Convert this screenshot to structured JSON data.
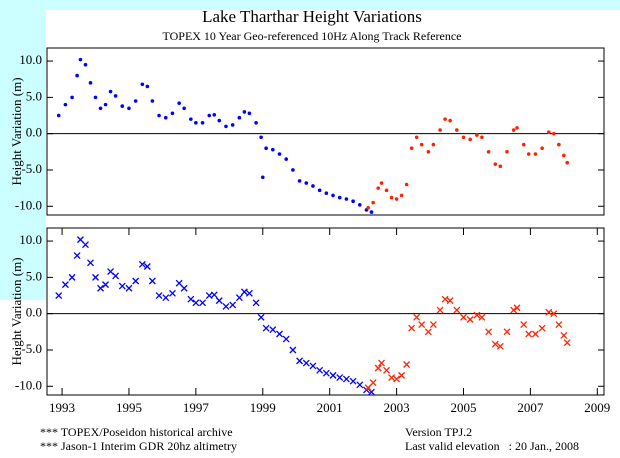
{
  "chart_data": [
    {
      "type": "scatter",
      "marker": "dot",
      "title": "Lake Tharthar Height Variations",
      "subtitle": "TOPEX 10 Year Geo-referenced 10Hz Along Track Reference",
      "y_label": "Height Variation (m)",
      "xlim": [
        1992.55,
        2009.2
      ],
      "ylim": [
        -11.2,
        11.8
      ],
      "yticks": [
        {
          "value": -10,
          "label": "-10.0"
        },
        {
          "value": -5,
          "label": "-5.0"
        },
        {
          "value": 0,
          "label": "0.0"
        },
        {
          "value": 5,
          "label": "5.0"
        },
        {
          "value": 10,
          "label": "10.0"
        }
      ],
      "zero_line": true,
      "series": [
        {
          "color": "#0000ff",
          "x": [
            1992.9,
            1993.1,
            1993.3,
            1993.45,
            1993.55,
            1993.7,
            1993.85,
            1994.0,
            1994.15,
            1994.3,
            1994.45,
            1994.6,
            1994.8,
            1995.0,
            1995.2,
            1995.4,
            1995.55,
            1995.7,
            1995.9,
            1996.1,
            1996.3,
            1996.5,
            1996.65,
            1996.85,
            1997.0,
            1997.2,
            1997.4,
            1997.55,
            1997.7,
            1997.9,
            1998.1,
            1998.3,
            1998.45,
            1998.6,
            1998.8,
            1998.95,
            1999.0,
            1999.1,
            1999.3,
            1999.5,
            1999.7,
            1999.9,
            2000.1,
            2000.3,
            2000.5,
            2000.7,
            2000.9,
            2001.1,
            2001.3,
            2001.5,
            2001.7,
            2001.9,
            2002.1,
            2002.25
          ],
          "values": [
            2.5,
            4.0,
            5.0,
            8.0,
            10.2,
            9.5,
            7.0,
            5.0,
            3.5,
            4.0,
            5.8,
            5.2,
            3.8,
            3.5,
            4.5,
            6.8,
            6.5,
            4.5,
            2.5,
            2.2,
            2.8,
            4.2,
            3.5,
            2.0,
            1.5,
            1.5,
            2.5,
            2.6,
            1.8,
            1.0,
            1.2,
            2.2,
            3.0,
            2.8,
            1.5,
            -0.5,
            -6.0,
            -2.0,
            -2.2,
            -2.8,
            -3.5,
            -5.0,
            -6.5,
            -6.8,
            -7.2,
            -7.8,
            -8.2,
            -8.5,
            -8.8,
            -9.0,
            -9.3,
            -9.8,
            -10.5,
            -10.8
          ]
        },
        {
          "color": "#ff2200",
          "x": [
            2002.15,
            2002.3,
            2002.45,
            2002.55,
            2002.7,
            2002.85,
            2003.0,
            2003.15,
            2003.3,
            2003.45,
            2003.6,
            2003.75,
            2003.95,
            2004.1,
            2004.3,
            2004.45,
            2004.6,
            2004.8,
            2005.0,
            2005.2,
            2005.4,
            2005.55,
            2005.75,
            2005.95,
            2006.1,
            2006.3,
            2006.5,
            2006.6,
            2006.8,
            2006.95,
            2007.15,
            2007.35,
            2007.55,
            2007.7,
            2007.85,
            2008.0,
            2008.1
          ],
          "values": [
            -10.2,
            -9.5,
            -7.5,
            -6.8,
            -7.8,
            -8.8,
            -9.0,
            -8.5,
            -7.0,
            -2.0,
            -0.5,
            -1.5,
            -2.5,
            -1.5,
            0.5,
            2.0,
            1.8,
            0.5,
            -0.5,
            -0.8,
            -0.2,
            -0.5,
            -2.5,
            -4.2,
            -4.5,
            -2.5,
            0.5,
            0.8,
            -1.5,
            -2.8,
            -2.8,
            -2.0,
            0.2,
            0.0,
            -1.5,
            -3.0,
            -4.0
          ]
        }
      ]
    },
    {
      "type": "scatter",
      "marker": "x",
      "y_label": "Height Variation (m)",
      "xlim": [
        1992.55,
        2009.2
      ],
      "ylim": [
        -11.2,
        11.8
      ],
      "xticks": [
        1993,
        1995,
        1997,
        1999,
        2001,
        2003,
        2005,
        2007,
        2009
      ],
      "yticks": [
        {
          "value": -10,
          "label": "-10.0"
        },
        {
          "value": -5,
          "label": "-5.0"
        },
        {
          "value": 0,
          "label": "0.0"
        },
        {
          "value": 5,
          "label": "5.0"
        },
        {
          "value": 10,
          "label": "10.0"
        }
      ],
      "zero_line": true,
      "series": [
        {
          "name": "*** TOPEX/Poseidon historical archive",
          "color": "#0000ff",
          "x": [
            1992.9,
            1993.1,
            1993.3,
            1993.45,
            1993.55,
            1993.7,
            1993.85,
            1994.0,
            1994.15,
            1994.3,
            1994.45,
            1994.6,
            1994.8,
            1995.0,
            1995.2,
            1995.4,
            1995.55,
            1995.7,
            1995.9,
            1996.1,
            1996.3,
            1996.5,
            1996.65,
            1996.85,
            1997.0,
            1997.2,
            1997.4,
            1997.55,
            1997.7,
            1997.9,
            1998.1,
            1998.3,
            1998.45,
            1998.6,
            1998.8,
            1998.95,
            1999.1,
            1999.3,
            1999.5,
            1999.7,
            1999.9,
            2000.1,
            2000.3,
            2000.5,
            2000.7,
            2000.9,
            2001.1,
            2001.3,
            2001.5,
            2001.7,
            2001.9,
            2002.1,
            2002.25
          ],
          "values": [
            2.5,
            4.0,
            5.0,
            8.0,
            10.2,
            9.5,
            7.0,
            5.0,
            3.5,
            4.0,
            5.8,
            5.2,
            3.8,
            3.5,
            4.5,
            6.8,
            6.5,
            4.5,
            2.5,
            2.2,
            2.8,
            4.2,
            3.5,
            2.0,
            1.5,
            1.5,
            2.5,
            2.6,
            1.8,
            1.0,
            1.2,
            2.2,
            3.0,
            2.8,
            1.5,
            -0.5,
            -2.0,
            -2.2,
            -2.8,
            -3.5,
            -5.0,
            -6.5,
            -6.8,
            -7.2,
            -7.8,
            -8.2,
            -8.5,
            -8.8,
            -9.0,
            -9.3,
            -9.8,
            -10.5,
            -10.8
          ]
        },
        {
          "name": "*** Jason-1 Interim GDR 20hz altimetry",
          "color": "#ff2200",
          "x": [
            2002.15,
            2002.3,
            2002.45,
            2002.55,
            2002.7,
            2002.85,
            2003.0,
            2003.15,
            2003.3,
            2003.45,
            2003.6,
            2003.75,
            2003.95,
            2004.1,
            2004.3,
            2004.45,
            2004.6,
            2004.8,
            2005.0,
            2005.2,
            2005.4,
            2005.55,
            2005.75,
            2005.95,
            2006.1,
            2006.3,
            2006.5,
            2006.6,
            2006.8,
            2006.95,
            2007.15,
            2007.35,
            2007.55,
            2007.7,
            2007.85,
            2008.0,
            2008.1
          ],
          "values": [
            -10.2,
            -9.5,
            -7.5,
            -6.8,
            -7.8,
            -8.8,
            -9.0,
            -8.5,
            -7.0,
            -2.0,
            -0.5,
            -1.5,
            -2.5,
            -1.5,
            0.5,
            2.0,
            1.8,
            0.5,
            -0.5,
            -0.8,
            -0.2,
            -0.5,
            -2.5,
            -4.2,
            -4.5,
            -2.5,
            0.5,
            0.8,
            -1.5,
            -2.8,
            -2.8,
            -2.0,
            0.2,
            0.0,
            -1.5,
            -3.0,
            -4.0
          ]
        }
      ]
    }
  ],
  "footer": {
    "version": "Version TPJ.2",
    "last_valid": "Last valid elevation   : 20 Jan., 2008"
  }
}
